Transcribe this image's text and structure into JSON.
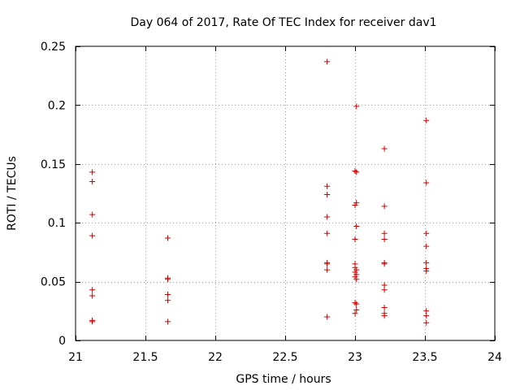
{
  "chart_data": {
    "type": "scatter",
    "title": "Day 064 of 2017, Rate Of TEC Index for receiver dav1",
    "xlabel": "GPS time / hours",
    "ylabel": "ROTI / TECUs",
    "xlim": [
      21,
      24
    ],
    "ylim": [
      0,
      0.25
    ],
    "grid": true,
    "marker": "+",
    "colors": {
      "marker": "#cc0000",
      "grid": "#999999",
      "axis": "#000000"
    },
    "x_ticks": [
      {
        "value": 21,
        "label": "21"
      },
      {
        "value": 21.5,
        "label": "21.5"
      },
      {
        "value": 22,
        "label": "22"
      },
      {
        "value": 22.5,
        "label": "22.5"
      },
      {
        "value": 23,
        "label": "23"
      },
      {
        "value": 23.5,
        "label": "23.5"
      },
      {
        "value": 24,
        "label": "24"
      }
    ],
    "y_ticks": [
      {
        "value": 0,
        "label": "0"
      },
      {
        "value": 0.05,
        "label": "0.05"
      },
      {
        "value": 0.1,
        "label": "0.1"
      },
      {
        "value": 0.15,
        "label": "0.15"
      },
      {
        "value": 0.2,
        "label": "0.2"
      },
      {
        "value": 0.25,
        "label": "0.25"
      }
    ],
    "series": [
      {
        "name": "ROTI",
        "points": [
          [
            21.12,
            0.143
          ],
          [
            21.12,
            0.135
          ],
          [
            21.12,
            0.107
          ],
          [
            21.12,
            0.089
          ],
          [
            21.12,
            0.043
          ],
          [
            21.12,
            0.038
          ],
          [
            21.12,
            0.017
          ],
          [
            21.12,
            0.016
          ],
          [
            21.66,
            0.087
          ],
          [
            21.66,
            0.053
          ],
          [
            21.66,
            0.052
          ],
          [
            21.66,
            0.039
          ],
          [
            21.66,
            0.034
          ],
          [
            21.66,
            0.016
          ],
          [
            22.8,
            0.237
          ],
          [
            22.8,
            0.131
          ],
          [
            22.8,
            0.124
          ],
          [
            22.8,
            0.105
          ],
          [
            22.8,
            0.091
          ],
          [
            22.8,
            0.066
          ],
          [
            22.8,
            0.065
          ],
          [
            22.8,
            0.06
          ],
          [
            22.8,
            0.02
          ],
          [
            23.01,
            0.199
          ],
          [
            23.0,
            0.144
          ],
          [
            23.01,
            0.143
          ],
          [
            23.01,
            0.117
          ],
          [
            23.0,
            0.115
          ],
          [
            23.01,
            0.097
          ],
          [
            23.0,
            0.086
          ],
          [
            23.0,
            0.065
          ],
          [
            23.0,
            0.062
          ],
          [
            23.01,
            0.06
          ],
          [
            23.0,
            0.058
          ],
          [
            23.01,
            0.056
          ],
          [
            23.0,
            0.054
          ],
          [
            23.01,
            0.052
          ],
          [
            23.0,
            0.032
          ],
          [
            23.01,
            0.031
          ],
          [
            23.01,
            0.026
          ],
          [
            23.0,
            0.023
          ],
          [
            23.21,
            0.163
          ],
          [
            23.21,
            0.114
          ],
          [
            23.21,
            0.091
          ],
          [
            23.21,
            0.086
          ],
          [
            23.21,
            0.066
          ],
          [
            23.21,
            0.065
          ],
          [
            23.21,
            0.047
          ],
          [
            23.21,
            0.043
          ],
          [
            23.21,
            0.028
          ],
          [
            23.21,
            0.023
          ],
          [
            23.21,
            0.021
          ],
          [
            23.51,
            0.187
          ],
          [
            23.51,
            0.134
          ],
          [
            23.51,
            0.091
          ],
          [
            23.51,
            0.08
          ],
          [
            23.51,
            0.066
          ],
          [
            23.51,
            0.061
          ],
          [
            23.51,
            0.059
          ],
          [
            23.51,
            0.025
          ],
          [
            23.51,
            0.021
          ],
          [
            23.51,
            0.015
          ]
        ]
      }
    ]
  }
}
